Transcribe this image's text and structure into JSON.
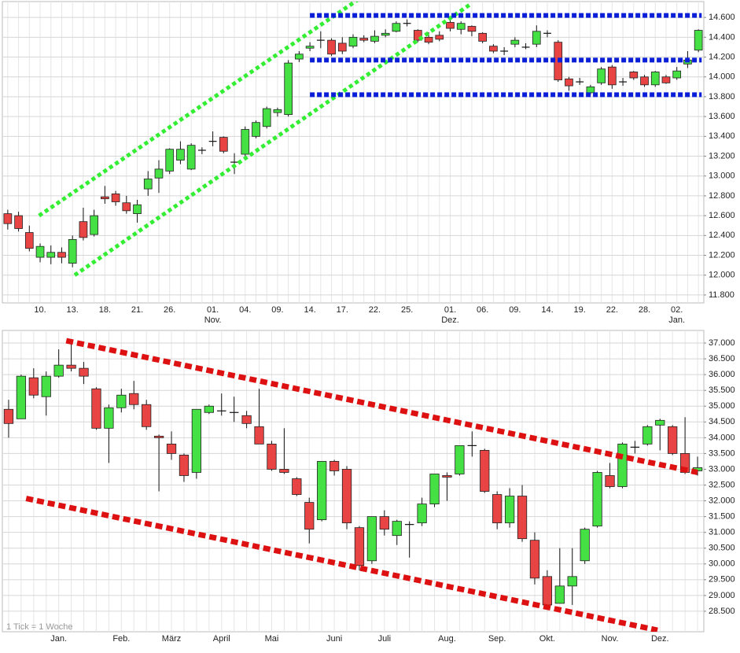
{
  "chart_data": [
    {
      "type": "candlestick",
      "categories": [
        null,
        null,
        null,
        "10.",
        null,
        null,
        "13.",
        null,
        null,
        "18.",
        null,
        null,
        "21.",
        null,
        null,
        "26.",
        null,
        null,
        null,
        "01.",
        null,
        null,
        "04.",
        null,
        null,
        "09.",
        null,
        null,
        "14.",
        null,
        null,
        "17.",
        null,
        null,
        "22.",
        null,
        null,
        "25.",
        null,
        null,
        null,
        "01.",
        null,
        null,
        "06.",
        null,
        null,
        "09.",
        null,
        null,
        "14.",
        null,
        null,
        "19.",
        null,
        null,
        "22.",
        null,
        null,
        "28.",
        null,
        null,
        "02.",
        null,
        null
      ],
      "sublabels": [
        null,
        null,
        null,
        null,
        null,
        null,
        null,
        null,
        null,
        null,
        null,
        null,
        null,
        null,
        null,
        null,
        null,
        null,
        null,
        "Nov.",
        null,
        null,
        null,
        null,
        null,
        null,
        null,
        null,
        null,
        null,
        null,
        null,
        null,
        null,
        null,
        null,
        null,
        null,
        null,
        null,
        null,
        "Dez.",
        null,
        null,
        null,
        null,
        null,
        null,
        null,
        null,
        null,
        null,
        null,
        null,
        null,
        null,
        null,
        null,
        null,
        null,
        null,
        null,
        "Jan.",
        null,
        null
      ],
      "open": [
        12620,
        12600,
        12430,
        12180,
        12180,
        12230,
        12120,
        12540,
        12410,
        12790,
        12820,
        12730,
        12620,
        12870,
        12980,
        13050,
        13160,
        13070,
        13260,
        13350,
        13390,
        13140,
        13220,
        13400,
        13500,
        13640,
        13620,
        14180,
        14290,
        14370,
        14370,
        14340,
        14310,
        14390,
        14360,
        14420,
        14460,
        14540,
        14470,
        14400,
        14420,
        14550,
        14480,
        14510,
        14440,
        14310,
        14260,
        14330,
        14300,
        14330,
        14440,
        14350,
        13980,
        13950,
        13840,
        13940,
        14100,
        13950,
        14050,
        14000,
        13920,
        14000,
        13990,
        14130,
        14270
      ],
      "high": [
        12660,
        12640,
        12500,
        12320,
        12300,
        12280,
        12400,
        12680,
        12660,
        12900,
        12850,
        12800,
        12760,
        13050,
        13160,
        13280,
        13350,
        13330,
        13290,
        13450,
        13400,
        13230,
        13500,
        13560,
        13700,
        13690,
        14170,
        14260,
        14350,
        14460,
        14390,
        14400,
        14430,
        14420,
        14470,
        14480,
        14560,
        14580,
        14480,
        14450,
        14460,
        14600,
        14560,
        14520,
        14450,
        14330,
        14300,
        14400,
        14340,
        14520,
        14470,
        14370,
        14000,
        13990,
        13920,
        14100,
        14120,
        13990,
        14060,
        14020,
        14060,
        14020,
        14100,
        14260,
        14480
      ],
      "low": [
        12460,
        12440,
        12240,
        12130,
        12110,
        12120,
        12080,
        12350,
        12390,
        12720,
        12700,
        12620,
        12530,
        12800,
        12830,
        13020,
        13120,
        13060,
        13220,
        13300,
        13230,
        13020,
        13200,
        13380,
        13480,
        13600,
        13600,
        14150,
        14260,
        14290,
        14210,
        14230,
        14290,
        14350,
        14340,
        14400,
        14450,
        14510,
        14350,
        14330,
        14360,
        14460,
        14430,
        14410,
        14340,
        14240,
        14220,
        14300,
        14280,
        14300,
        14400,
        13950,
        13860,
        13920,
        13820,
        13920,
        13880,
        13910,
        13970,
        13900,
        13900,
        13930,
        13970,
        14090,
        14250
      ],
      "close": [
        12520,
        12470,
        12270,
        12290,
        12230,
        12180,
        12360,
        12380,
        12600,
        12770,
        12740,
        12650,
        12710,
        12970,
        13070,
        13270,
        13270,
        13310,
        13260,
        13350,
        13250,
        13140,
        13470,
        13540,
        13680,
        13670,
        14140,
        14230,
        14310,
        14370,
        14230,
        14260,
        14400,
        14370,
        14410,
        14440,
        14540,
        14540,
        14370,
        14350,
        14380,
        14490,
        14540,
        14460,
        14360,
        14260,
        14260,
        14370,
        14300,
        14460,
        14440,
        13970,
        13910,
        13950,
        13900,
        14080,
        13920,
        13950,
        13990,
        13920,
        14050,
        13940,
        14060,
        14170,
        14470
      ],
      "up_color": "#44e044",
      "down_color": "#e84444",
      "ylim": [
        11720,
        14760
      ],
      "yticks": [
        {
          "value": 11800,
          "label": "11.800"
        },
        {
          "value": 12000,
          "label": "12.000"
        },
        {
          "value": 12200,
          "label": "12.200"
        },
        {
          "value": 12400,
          "label": "12.400"
        },
        {
          "value": 12600,
          "label": "12.600"
        },
        {
          "value": 12800,
          "label": "12.800"
        },
        {
          "value": 13000,
          "label": "13.000"
        },
        {
          "value": 13200,
          "label": "13.200"
        },
        {
          "value": 13400,
          "label": "13.400"
        },
        {
          "value": 13600,
          "label": "13.600"
        },
        {
          "value": 13800,
          "label": "13.800"
        },
        {
          "value": 14000,
          "label": "14.000"
        },
        {
          "value": 14200,
          "label": "14.200"
        },
        {
          "value": 14400,
          "label": "14.400"
        },
        {
          "value": 14600,
          "label": "14.600"
        }
      ],
      "grid": true,
      "lines": [
        {
          "from": [
            2.9,
            12600
          ],
          "to": [
            32.4,
            14775
          ],
          "color": "#33ee33"
        },
        {
          "from": [
            6.2,
            12000
          ],
          "to": [
            42.9,
            14735
          ],
          "color": "#33ee33"
        },
        {
          "from": [
            28,
            14620
          ],
          "to": [
            64.3,
            14620
          ],
          "color": "#0a1ed8"
        },
        {
          "from": [
            28,
            14170
          ],
          "to": [
            64.3,
            14170
          ],
          "color": "#0a1ed8"
        },
        {
          "from": [
            28,
            13820
          ],
          "to": [
            64.3,
            13820
          ],
          "color": "#0a1ed8"
        }
      ]
    },
    {
      "type": "candlestick",
      "categories": [
        null,
        null,
        null,
        null,
        "Jan.",
        null,
        null,
        null,
        null,
        "Feb.",
        null,
        null,
        null,
        "März",
        null,
        null,
        null,
        "April",
        null,
        null,
        null,
        "Mai",
        null,
        null,
        null,
        null,
        "Juni",
        null,
        null,
        null,
        "Juli",
        null,
        null,
        null,
        null,
        "Aug.",
        null,
        null,
        null,
        "Sep.",
        null,
        null,
        null,
        "Okt.",
        null,
        null,
        null,
        null,
        "Nov.",
        null,
        null,
        null,
        "Dez.",
        null,
        null,
        null
      ],
      "open": [
        34900,
        34600,
        35900,
        35300,
        35950,
        36300,
        36200,
        35550,
        34300,
        34950,
        35400,
        35050,
        34050,
        33800,
        33450,
        32900,
        34800,
        34850,
        34800,
        34700,
        34350,
        33800,
        33000,
        32700,
        31950,
        31400,
        33250,
        33000,
        31150,
        30100,
        31500,
        30900,
        31250,
        31300,
        31900,
        32800,
        32850,
        33750,
        33600,
        32200,
        31300,
        32150,
        30750,
        29600,
        28750,
        29300,
        30100,
        31200,
        32800,
        32450,
        33700,
        33800,
        34400,
        34350,
        33500,
        32950
      ],
      "high": [
        35200,
        36000,
        36200,
        36100,
        36800,
        37000,
        36400,
        35600,
        35050,
        35550,
        35800,
        35200,
        34100,
        34200,
        33500,
        34900,
        35050,
        35400,
        35300,
        34850,
        35550,
        33900,
        34300,
        32750,
        32100,
        33250,
        33300,
        33100,
        31200,
        31500,
        31700,
        31400,
        31350,
        32100,
        32850,
        32900,
        33750,
        34200,
        33650,
        32300,
        32400,
        32500,
        31000,
        29800,
        30500,
        30500,
        31150,
        32950,
        33200,
        33850,
        33900,
        34400,
        34600,
        34400,
        34650,
        33400
      ],
      "low": [
        34000,
        34600,
        35250,
        34700,
        35900,
        36100,
        35700,
        34250,
        33200,
        34800,
        34900,
        34250,
        32300,
        33300,
        32600,
        32700,
        34750,
        34700,
        34500,
        34300,
        33800,
        32950,
        32850,
        32150,
        30650,
        31350,
        32800,
        31100,
        29800,
        30000,
        30900,
        30600,
        30200,
        31200,
        31800,
        32000,
        32800,
        33400,
        32250,
        31100,
        31150,
        30700,
        29350,
        28700,
        28750,
        28700,
        30000,
        31150,
        32400,
        32400,
        33500,
        33750,
        33600,
        33450,
        32850,
        32800
      ],
      "close": [
        34450,
        35950,
        35350,
        35950,
        36300,
        36200,
        35950,
        34300,
        34950,
        35350,
        35050,
        34350,
        34000,
        33500,
        32800,
        34900,
        35000,
        34850,
        34800,
        34450,
        33800,
        33000,
        32900,
        32200,
        31100,
        33250,
        32950,
        31300,
        29950,
        31500,
        31100,
        31350,
        31250,
        31900,
        32850,
        32750,
        33750,
        33750,
        32300,
        31300,
        32150,
        30800,
        29550,
        28700,
        29300,
        29600,
        31100,
        32900,
        32450,
        33800,
        33700,
        34350,
        34550,
        33500,
        32900,
        33050
      ],
      "up_color": "#44e044",
      "down_color": "#e84444",
      "ylim": [
        27850,
        37400
      ],
      "yticks": [
        {
          "value": 28500,
          "label": "28.500"
        },
        {
          "value": 29000,
          "label": "29.000"
        },
        {
          "value": 29500,
          "label": "29.500"
        },
        {
          "value": 30000,
          "label": "30.000"
        },
        {
          "value": 30500,
          "label": "30.500"
        },
        {
          "value": 31000,
          "label": "31.000"
        },
        {
          "value": 31500,
          "label": "31.500"
        },
        {
          "value": 32000,
          "label": "32.000"
        },
        {
          "value": 32500,
          "label": "32.500"
        },
        {
          "value": 33000,
          "label": "33.000"
        },
        {
          "value": 33500,
          "label": "33.500"
        },
        {
          "value": 34000,
          "label": "34.000"
        },
        {
          "value": 34500,
          "label": "34.500"
        },
        {
          "value": 35000,
          "label": "35.000"
        },
        {
          "value": 35500,
          "label": "35.500"
        },
        {
          "value": 36000,
          "label": "36.000"
        },
        {
          "value": 36500,
          "label": "36.500"
        },
        {
          "value": 37000,
          "label": "37.000"
        }
      ],
      "grid": true,
      "annotation": "1 Tick = 1 Woche",
      "lines": [
        {
          "from": [
            4.6,
            37075
          ],
          "to": [
            55,
            32900
          ],
          "color": "#dd1111"
        },
        {
          "from": [
            1.4,
            32075
          ],
          "to": [
            51.8,
            27900
          ],
          "color": "#dd1111"
        }
      ]
    }
  ]
}
